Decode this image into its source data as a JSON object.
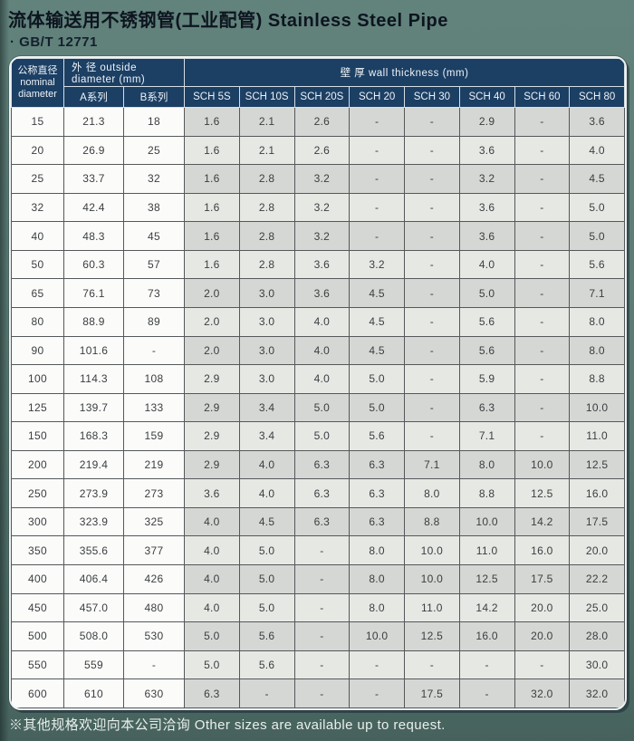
{
  "colors": {
    "page_bg": "#5a7973",
    "header_bg": "#1c3f64",
    "header_text": "#edf2f6",
    "row_dark": "#d4d7d3",
    "row_light": "#e6e8e4",
    "plain_cell_bg": "#fbfcfa",
    "grid_line": "#54585a",
    "title_text": "#0d151f",
    "footer_text": "#e9efec"
  },
  "page": {
    "title": "流体输送用不锈钢管(工业配管) Stainless Steel Pipe",
    "standard": "· GB/T 12771",
    "footer": "※其他规格欢迎向本公司洽询  Other sizes are available up to request."
  },
  "table": {
    "header": {
      "nominal_cn": "公称直径",
      "nominal_en_line1": "nominal",
      "nominal_en_line2": "diameter",
      "outside_diameter": "外 径 outside diameter  (mm)",
      "wall_thickness": "壁 厚 wall thickness  (mm)",
      "series_a": "A系列",
      "series_b": "B系列"
    },
    "sch_columns": [
      "SCH 5S",
      "SCH 10S",
      "SCH 20S",
      "SCH 20",
      "SCH 30",
      "SCH 40",
      "SCH 60",
      "SCH 80"
    ],
    "rows": [
      {
        "dn": "15",
        "a": "21.3",
        "b": "18",
        "sch": [
          "1.6",
          "2.1",
          "2.6",
          "-",
          "-",
          "2.9",
          "-",
          "3.6"
        ]
      },
      {
        "dn": "20",
        "a": "26.9",
        "b": "25",
        "sch": [
          "1.6",
          "2.1",
          "2.6",
          "-",
          "-",
          "3.6",
          "-",
          "4.0"
        ]
      },
      {
        "dn": "25",
        "a": "33.7",
        "b": "32",
        "sch": [
          "1.6",
          "2.8",
          "3.2",
          "-",
          "-",
          "3.2",
          "-",
          "4.5"
        ]
      },
      {
        "dn": "32",
        "a": "42.4",
        "b": "38",
        "sch": [
          "1.6",
          "2.8",
          "3.2",
          "-",
          "-",
          "3.6",
          "-",
          "5.0"
        ]
      },
      {
        "dn": "40",
        "a": "48.3",
        "b": "45",
        "sch": [
          "1.6",
          "2.8",
          "3.2",
          "-",
          "-",
          "3.6",
          "-",
          "5.0"
        ]
      },
      {
        "dn": "50",
        "a": "60.3",
        "b": "57",
        "sch": [
          "1.6",
          "2.8",
          "3.6",
          "3.2",
          "-",
          "4.0",
          "-",
          "5.6"
        ]
      },
      {
        "dn": "65",
        "a": "76.1",
        "b": "73",
        "sch": [
          "2.0",
          "3.0",
          "3.6",
          "4.5",
          "-",
          "5.0",
          "-",
          "7.1"
        ]
      },
      {
        "dn": "80",
        "a": "88.9",
        "b": "89",
        "sch": [
          "2.0",
          "3.0",
          "4.0",
          "4.5",
          "-",
          "5.6",
          "-",
          "8.0"
        ]
      },
      {
        "dn": "90",
        "a": "101.6",
        "b": "-",
        "sch": [
          "2.0",
          "3.0",
          "4.0",
          "4.5",
          "-",
          "5.6",
          "-",
          "8.0"
        ]
      },
      {
        "dn": "100",
        "a": "114.3",
        "b": "108",
        "sch": [
          "2.9",
          "3.0",
          "4.0",
          "5.0",
          "-",
          "5.9",
          "-",
          "8.8"
        ]
      },
      {
        "dn": "125",
        "a": "139.7",
        "b": "133",
        "sch": [
          "2.9",
          "3.4",
          "5.0",
          "5.0",
          "-",
          "6.3",
          "-",
          "10.0"
        ]
      },
      {
        "dn": "150",
        "a": "168.3",
        "b": "159",
        "sch": [
          "2.9",
          "3.4",
          "5.0",
          "5.6",
          "-",
          "7.1",
          "-",
          "11.0"
        ]
      },
      {
        "dn": "200",
        "a": "219.4",
        "b": "219",
        "sch": [
          "2.9",
          "4.0",
          "6.3",
          "6.3",
          "7.1",
          "8.0",
          "10.0",
          "12.5"
        ]
      },
      {
        "dn": "250",
        "a": "273.9",
        "b": "273",
        "sch": [
          "3.6",
          "4.0",
          "6.3",
          "6.3",
          "8.0",
          "8.8",
          "12.5",
          "16.0"
        ]
      },
      {
        "dn": "300",
        "a": "323.9",
        "b": "325",
        "sch": [
          "4.0",
          "4.5",
          "6.3",
          "6.3",
          "8.8",
          "10.0",
          "14.2",
          "17.5"
        ]
      },
      {
        "dn": "350",
        "a": "355.6",
        "b": "377",
        "sch": [
          "4.0",
          "5.0",
          "-",
          "8.0",
          "10.0",
          "11.0",
          "16.0",
          "20.0"
        ]
      },
      {
        "dn": "400",
        "a": "406.4",
        "b": "426",
        "sch": [
          "4.0",
          "5.0",
          "-",
          "8.0",
          "10.0",
          "12.5",
          "17.5",
          "22.2"
        ]
      },
      {
        "dn": "450",
        "a": "457.0",
        "b": "480",
        "sch": [
          "4.0",
          "5.0",
          "-",
          "8.0",
          "11.0",
          "14.2",
          "20.0",
          "25.0"
        ]
      },
      {
        "dn": "500",
        "a": "508.0",
        "b": "530",
        "sch": [
          "5.0",
          "5.6",
          "-",
          "10.0",
          "12.5",
          "16.0",
          "20.0",
          "28.0"
        ]
      },
      {
        "dn": "550",
        "a": "559",
        "b": "-",
        "sch": [
          "5.0",
          "5.6",
          "-",
          "-",
          "-",
          "-",
          "-",
          "30.0"
        ]
      },
      {
        "dn": "600",
        "a": "610",
        "b": "630",
        "sch": [
          "6.3",
          "-",
          "-",
          "-",
          "17.5",
          "-",
          "32.0",
          "32.0"
        ]
      }
    ]
  }
}
